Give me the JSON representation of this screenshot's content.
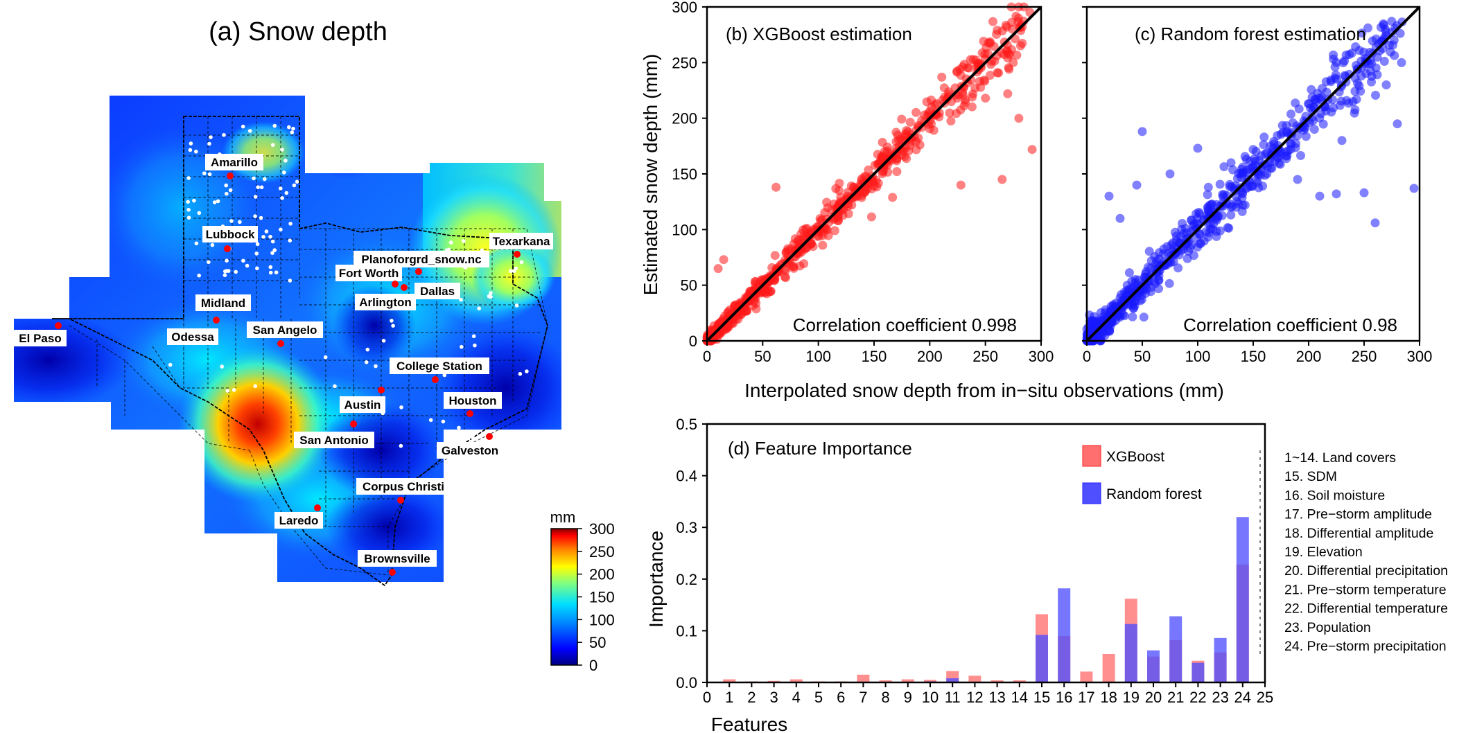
{
  "map": {
    "title": "(a) Snow depth",
    "colorbar": {
      "unit": "mm",
      "ticks": [
        0,
        50,
        100,
        150,
        200,
        250,
        300
      ]
    },
    "cities": [
      {
        "name": "Amarillo"
      },
      {
        "name": "Lubbock"
      },
      {
        "name": "Planoforgrd_snow.nc"
      },
      {
        "name": "Texarkana"
      },
      {
        "name": "Fort Worth"
      },
      {
        "name": "Dallas"
      },
      {
        "name": "Midland"
      },
      {
        "name": "Arlington"
      },
      {
        "name": "El Paso"
      },
      {
        "name": "Odessa"
      },
      {
        "name": "San Angelo"
      },
      {
        "name": "College Station"
      },
      {
        "name": "Austin"
      },
      {
        "name": "Houston"
      },
      {
        "name": "San Antonio"
      },
      {
        "name": "Galveston"
      },
      {
        "name": "Corpus Christi"
      },
      {
        "name": "Laredo"
      },
      {
        "name": "Brownsville"
      }
    ]
  },
  "chart_data": [
    {
      "type": "scatter",
      "title": "(b) XGBoost estimation",
      "xlabel": "Interpolated snow depth from in−situ observations (mm)",
      "ylabel": "Estimated snow depth (mm)",
      "xlim": [
        0,
        300
      ],
      "ylim": [
        0,
        300
      ],
      "xticks": [
        0,
        50,
        100,
        150,
        200,
        250,
        300
      ],
      "yticks": [
        0,
        50,
        100,
        150,
        200,
        250,
        300
      ],
      "annotation": "Correlation coefficient 0.998",
      "color": "#ff1a1a",
      "outliers": [
        [
          15,
          73
        ],
        [
          62,
          138
        ],
        [
          228,
          140
        ],
        [
          265,
          145
        ],
        [
          292,
          172
        ],
        [
          270,
          222
        ],
        [
          283,
          282
        ],
        [
          290,
          295
        ],
        [
          280,
          200
        ],
        [
          250,
          218
        ],
        [
          275,
          250
        ],
        [
          10,
          65
        ]
      ],
      "reference_line": "1:1"
    },
    {
      "type": "scatter",
      "title": "(c) Random forest estimation",
      "xlim": [
        0,
        300
      ],
      "ylim": [
        0,
        300
      ],
      "xticks": [
        0,
        50,
        100,
        150,
        200,
        250,
        300
      ],
      "annotation": "Correlation coefficient 0.98",
      "color": "#1a1aff",
      "outliers": [
        [
          50,
          188
        ],
        [
          100,
          173
        ],
        [
          150,
          172
        ],
        [
          210,
          130
        ],
        [
          225,
          132
        ],
        [
          250,
          133
        ],
        [
          260,
          106
        ],
        [
          295,
          137
        ],
        [
          30,
          110
        ],
        [
          20,
          130
        ],
        [
          45,
          140
        ],
        [
          75,
          150
        ],
        [
          130,
          160
        ],
        [
          190,
          145
        ],
        [
          230,
          180
        ],
        [
          240,
          215
        ],
        [
          280,
          195
        ],
        [
          270,
          230
        ]
      ],
      "reference_line": "1:1"
    },
    {
      "type": "bar",
      "title": "(d) Feature Importance",
      "xlabel": "Features",
      "ylabel": "Importance",
      "xlim": [
        0,
        25
      ],
      "ylim": [
        0,
        0.5
      ],
      "xticks": [
        0,
        1,
        2,
        3,
        4,
        5,
        6,
        7,
        8,
        9,
        10,
        11,
        12,
        13,
        14,
        15,
        16,
        17,
        18,
        19,
        20,
        21,
        22,
        23,
        24,
        25
      ],
      "yticks": [
        0,
        0.1,
        0.2,
        0.3,
        0.4,
        0.5
      ],
      "ytick_labels": [
        "0.0",
        "0.1",
        "0.2",
        "0.3",
        "0.4",
        "0.5"
      ],
      "categories": [
        1,
        2,
        3,
        4,
        5,
        6,
        7,
        8,
        9,
        10,
        11,
        12,
        13,
        14,
        15,
        16,
        17,
        18,
        19,
        20,
        21,
        22,
        23,
        24
      ],
      "series": [
        {
          "name": "XGBoost",
          "color": "#ff6f6f",
          "values": [
            0.006,
            0.002,
            0.003,
            0.006,
            0.002,
            0.002,
            0.015,
            0.004,
            0.006,
            0.005,
            0.022,
            0.013,
            0.004,
            0.004,
            0.132,
            0.09,
            0.021,
            0.055,
            0.162,
            0.05,
            0.082,
            0.042,
            0.058,
            0.228
          ]
        },
        {
          "name": "Random forest",
          "color": "#4f4fff",
          "values": [
            0.001,
            0.001,
            0.001,
            0.001,
            0.001,
            0.001,
            0.001,
            0.001,
            0.001,
            0.002,
            0.008,
            0.001,
            0.001,
            0.001,
            0.092,
            0.182,
            0.001,
            0.001,
            0.113,
            0.062,
            0.128,
            0.038,
            0.086,
            0.32
          ]
        }
      ],
      "feature_legend": [
        "1~14. Land covers",
        "15. SDM",
        "16. Soil moisture",
        "17. Pre−storm amplitude",
        "18. Differential amplitude",
        "19. Elevation",
        "20. Differential precipitation",
        "21. Pre−storm temperature",
        "22. Differential temperature",
        "23. Population",
        "24. Pre−storm precipitation"
      ]
    }
  ]
}
